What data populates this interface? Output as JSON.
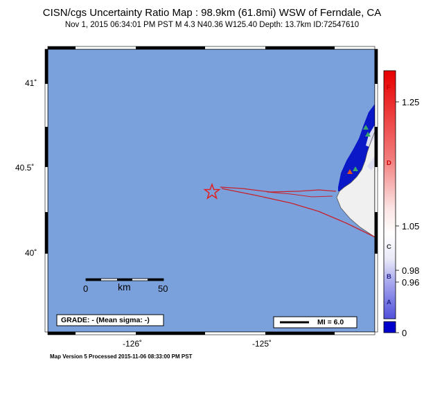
{
  "map": {
    "title": "CISN/cgs Uncertainty Ratio Map : 98.9km (61.8mi) WSW of Ferndale, CA",
    "subtitle": "Nov  1, 2015 06:34:01 PM PST   M 4.3   N40.36 W125.40   Depth: 13.7km   ID:72547610",
    "footer": "Map Version 5 Processed 2015-11-06 08:33:00 PM PST",
    "lat_ticks": [
      "41˚",
      "40.5˚",
      "40˚"
    ],
    "lon_ticks": [
      "-126˚",
      "-125˚"
    ],
    "scale_bar": {
      "unit": "km",
      "min_label": "0",
      "max_label": "50"
    },
    "grade_box": "GRADE: - (Mean sigma: -)",
    "mi_legend": "MI = 6.0",
    "epicenter": {
      "lat": 40.36,
      "lon": -125.4,
      "marker": "star-icon"
    },
    "colors": {
      "ocean": "#7aa1dc",
      "land": "#f0f0f0",
      "fault": "#c8202a",
      "station": "#3aa66a"
    }
  },
  "colorbar": {
    "values": [
      "1.25",
      "1.05",
      "0.98",
      "0.96",
      "0"
    ],
    "grades": [
      "F",
      "D",
      "C",
      "B",
      "A"
    ]
  }
}
